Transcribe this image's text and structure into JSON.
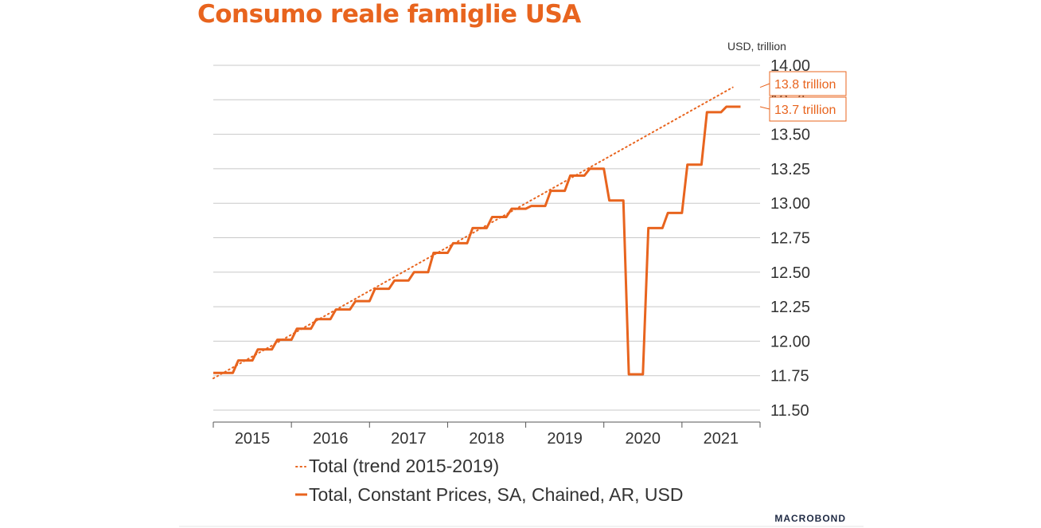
{
  "chart_data": {
    "type": "line",
    "title": "Consumo reale famiglie USA",
    "ylabel": "USD, trillion",
    "ylim": [
      11.5,
      14.0
    ],
    "yticks": [
      "14.00",
      "13.75",
      "13.50",
      "13.25",
      "13.00",
      "12.75",
      "12.50",
      "12.25",
      "12.00",
      "11.75",
      "11.50"
    ],
    "xlabels": [
      "2015",
      "2016",
      "2017",
      "2018",
      "2019",
      "2020",
      "2021"
    ],
    "series": [
      {
        "name": "Total, Constant Prices, SA, Chained, AR, USD",
        "style": "solid",
        "color": "#e8641e",
        "x": [
          "2015-Q1",
          "2015-Q2",
          "2015-Q3",
          "2015-Q4",
          "2016-Q1",
          "2016-Q2",
          "2016-Q3",
          "2016-Q4",
          "2017-Q1",
          "2017-Q2",
          "2017-Q3",
          "2017-Q4",
          "2018-Q1",
          "2018-Q2",
          "2018-Q3",
          "2018-Q4",
          "2019-Q1",
          "2019-Q2",
          "2019-Q3",
          "2019-Q4",
          "2020-Q1",
          "2020-Q2",
          "2020-Q3",
          "2020-Q4",
          "2021-Q1",
          "2021-Q2",
          "2021-Q3"
        ],
        "values": [
          11.77,
          11.86,
          11.94,
          12.01,
          12.09,
          12.16,
          12.23,
          12.29,
          12.38,
          12.44,
          12.5,
          12.64,
          12.71,
          12.82,
          12.9,
          12.96,
          12.98,
          13.09,
          13.2,
          13.25,
          13.02,
          11.76,
          12.82,
          12.93,
          13.28,
          13.66,
          13.7
        ]
      },
      {
        "name": "Total (trend 2015-2019)",
        "style": "dotted",
        "color": "#e8641e",
        "x": [
          "2015-Q1",
          "2021-Q3"
        ],
        "values": [
          11.73,
          13.84
        ]
      }
    ],
    "callouts": [
      "13.8 trillion",
      "13.7 trillion"
    ],
    "legend": [
      "Total (trend 2015-2019)",
      "Total, Constant Prices, SA, Chained, AR, USD"
    ],
    "legend_position": "bottom",
    "grid": true
  },
  "source": "MACROBOND"
}
